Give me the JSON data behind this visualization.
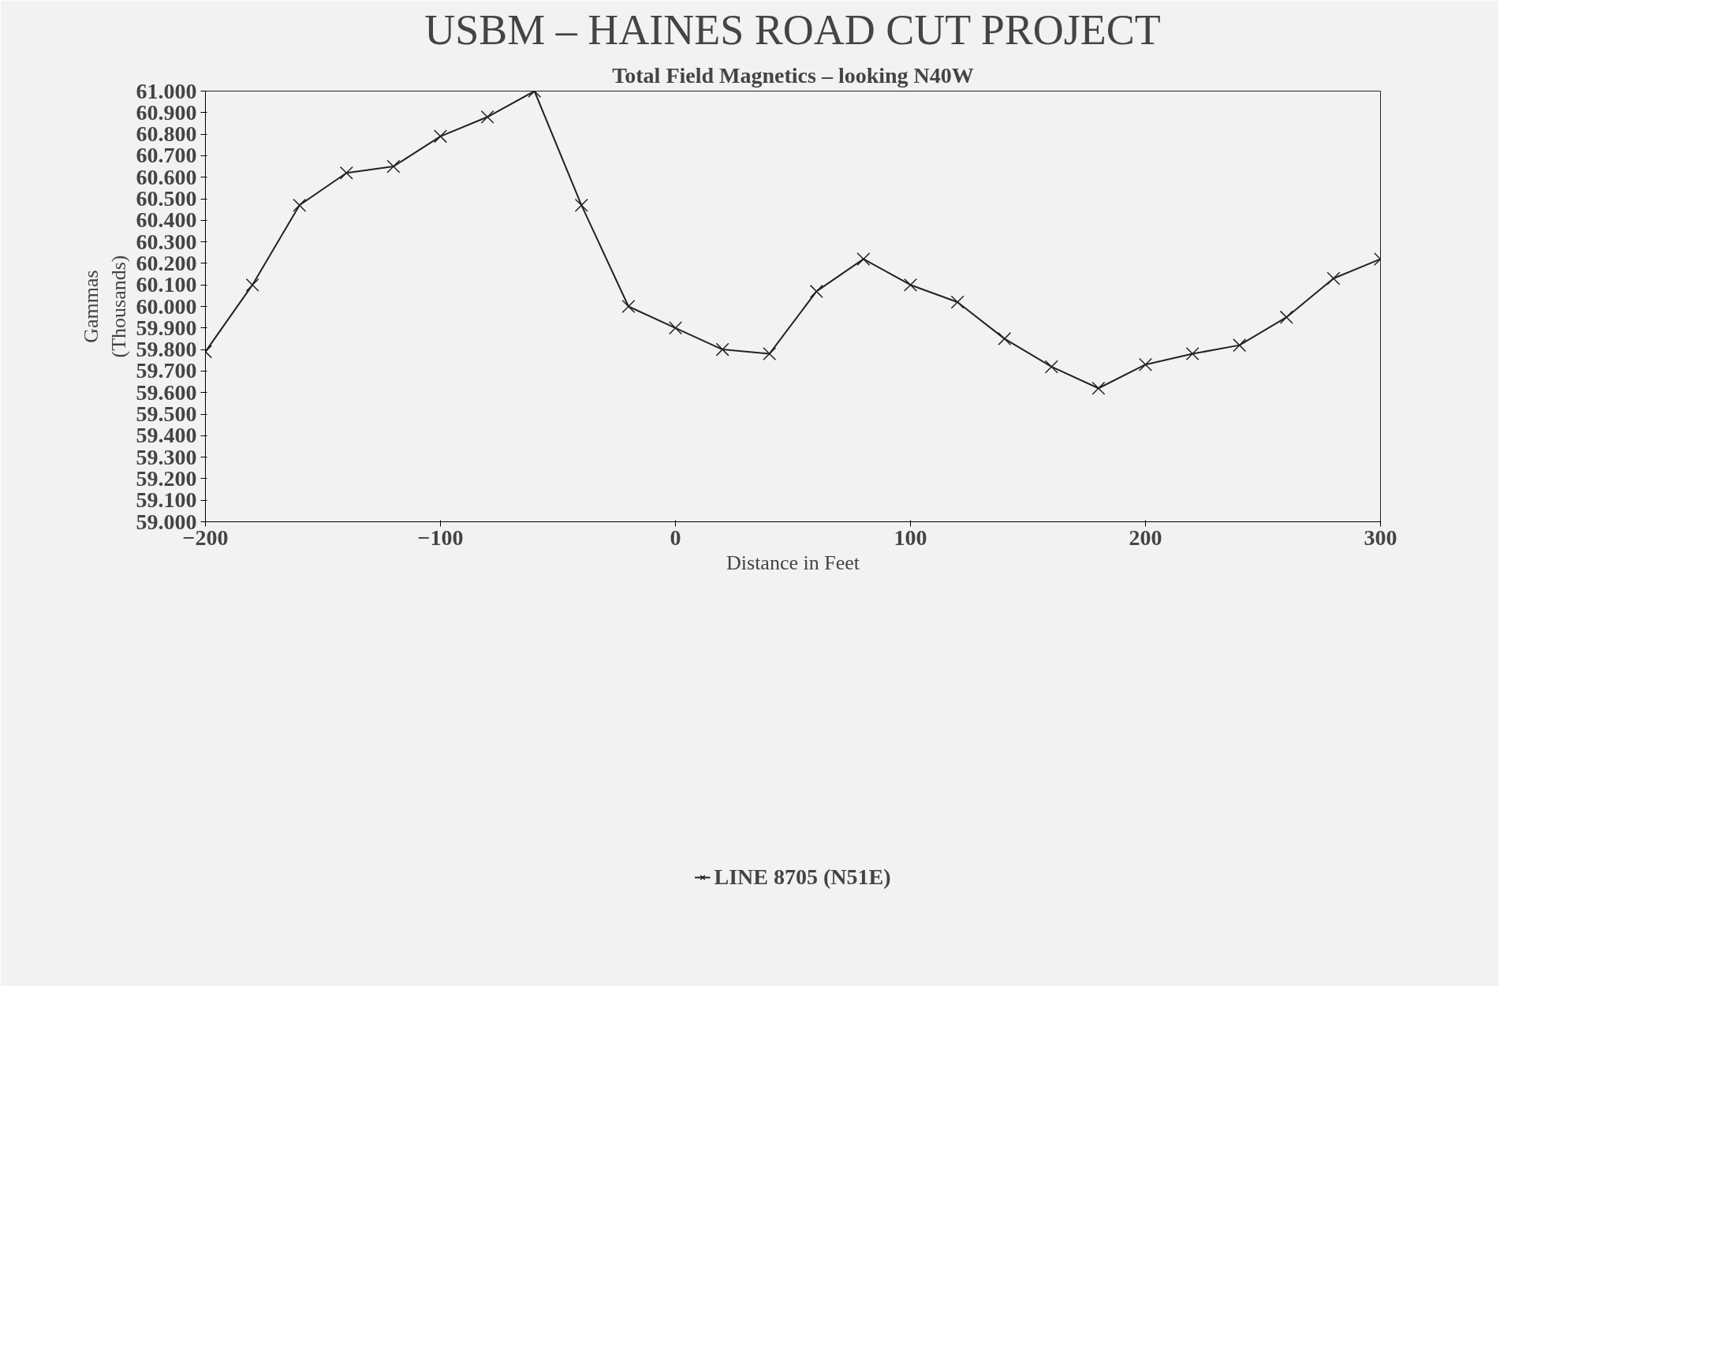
{
  "chart_data": {
    "type": "line",
    "title": "USBM – HAINES ROAD CUT PROJECT",
    "subtitle": "Total Field Magnetics – looking N40W",
    "xlabel": "Distance in Feet",
    "ylabel": "Gammas\n(Thousands)",
    "x": [
      -200,
      -180,
      -160,
      -140,
      -120,
      -100,
      -80,
      -60,
      -40,
      -20,
      0,
      20,
      40,
      60,
      80,
      100,
      120,
      140,
      160,
      180,
      200,
      220,
      240,
      260,
      280,
      300
    ],
    "series": [
      {
        "name": "LINE 8705 (N51E)",
        "color": "#222222",
        "values": [
          59790,
          60100,
          60470,
          60620,
          60650,
          60790,
          60880,
          61000,
          60470,
          60000,
          59900,
          59800,
          59780,
          60070,
          60220,
          60100,
          60020,
          59850,
          59720,
          59620,
          59730,
          59780,
          59820,
          59950,
          60130,
          60220
        ]
      }
    ],
    "xlim": [
      -200,
      300
    ],
    "xticks": [
      -200,
      -100,
      0,
      100,
      200,
      300
    ],
    "ylim": [
      59000,
      61000
    ],
    "yticks": [
      {
        "value": 59000,
        "label": "59.000"
      },
      {
        "value": 59100,
        "label": "59.100"
      },
      {
        "value": 59200,
        "label": "59.200"
      },
      {
        "value": 59300,
        "label": "59.300"
      },
      {
        "value": 59400,
        "label": "59.400"
      },
      {
        "value": 59500,
        "label": "59.500"
      },
      {
        "value": 59600,
        "label": "59.600"
      },
      {
        "value": 59700,
        "label": "59.700"
      },
      {
        "value": 59800,
        "label": "59.800"
      },
      {
        "value": 59900,
        "label": "59.900"
      },
      {
        "value": 60000,
        "label": "60.000"
      },
      {
        "value": 60100,
        "label": "60.100"
      },
      {
        "value": 60200,
        "label": "60.200"
      },
      {
        "value": 60300,
        "label": "60.300"
      },
      {
        "value": 60400,
        "label": "60.400"
      },
      {
        "value": 60500,
        "label": "60.500"
      },
      {
        "value": 60600,
        "label": "60.600"
      },
      {
        "value": 60700,
        "label": "60.700"
      },
      {
        "value": 60800,
        "label": "60.800"
      },
      {
        "value": 60900,
        "label": "60.900"
      },
      {
        "value": 61000,
        "label": "61.000"
      }
    ],
    "marker": "cross",
    "line_style": "solid",
    "legend": "bottom",
    "grid": false
  }
}
